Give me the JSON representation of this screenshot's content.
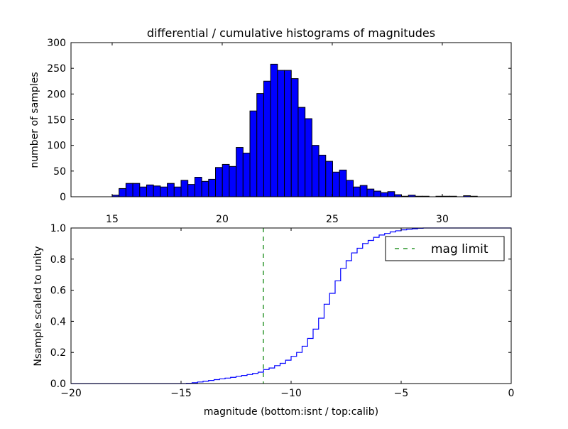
{
  "chart_data": [
    {
      "type": "bar",
      "title": "differential / cumulative histograms of magnitudes",
      "xlabel": "",
      "ylabel": "number of samples",
      "xlim": [
        13.13,
        33.13
      ],
      "ylim": [
        0,
        300
      ],
      "xticks": [
        15,
        20,
        25,
        30
      ],
      "yticks": [
        0,
        50,
        100,
        150,
        200,
        250,
        300
      ],
      "bin_start": 15.0,
      "bin_width": 0.313,
      "values": [
        3,
        16,
        26,
        26,
        19,
        23,
        21,
        19,
        26,
        19,
        32,
        24,
        38,
        30,
        34,
        57,
        63,
        59,
        96,
        85,
        167,
        201,
        225,
        258,
        246,
        246,
        230,
        174,
        152,
        100,
        81,
        69,
        48,
        52,
        32,
        19,
        22,
        15,
        11,
        8,
        10,
        4,
        1,
        3,
        1,
        1,
        0,
        1,
        1,
        1,
        0,
        2,
        1
      ],
      "color": "#0000ff",
      "edgecolor": "#000000"
    },
    {
      "type": "line",
      "xlabel": "magnitude (bottom:isnt / top:calib)",
      "ylabel": "Nsample scaled to unity",
      "xlim": [
        -20,
        0
      ],
      "ylim": [
        0,
        1
      ],
      "xticks": [
        -20,
        -15,
        -10,
        -5,
        0
      ],
      "yticks": [
        0.0,
        0.2,
        0.4,
        0.6,
        0.8,
        1.0
      ],
      "series": [
        {
          "name": "cumulative",
          "color": "#0000ff",
          "step_start": -14.75,
          "step_width": 0.25,
          "values": [
            0.002,
            0.005,
            0.01,
            0.015,
            0.02,
            0.025,
            0.03,
            0.035,
            0.04,
            0.046,
            0.052,
            0.058,
            0.065,
            0.073,
            0.09,
            0.1,
            0.115,
            0.13,
            0.15,
            0.175,
            0.2,
            0.24,
            0.29,
            0.35,
            0.42,
            0.51,
            0.58,
            0.66,
            0.74,
            0.79,
            0.84,
            0.87,
            0.9,
            0.92,
            0.94,
            0.955,
            0.965,
            0.975,
            0.982,
            0.988,
            0.992,
            0.995,
            0.998,
            1.0
          ]
        }
      ],
      "vline": {
        "x": -11.26,
        "label": "mag limit",
        "color": "#008000",
        "style": "dashed"
      },
      "legend": {
        "placement": "top-right",
        "entries": [
          "mag limit"
        ]
      }
    }
  ]
}
